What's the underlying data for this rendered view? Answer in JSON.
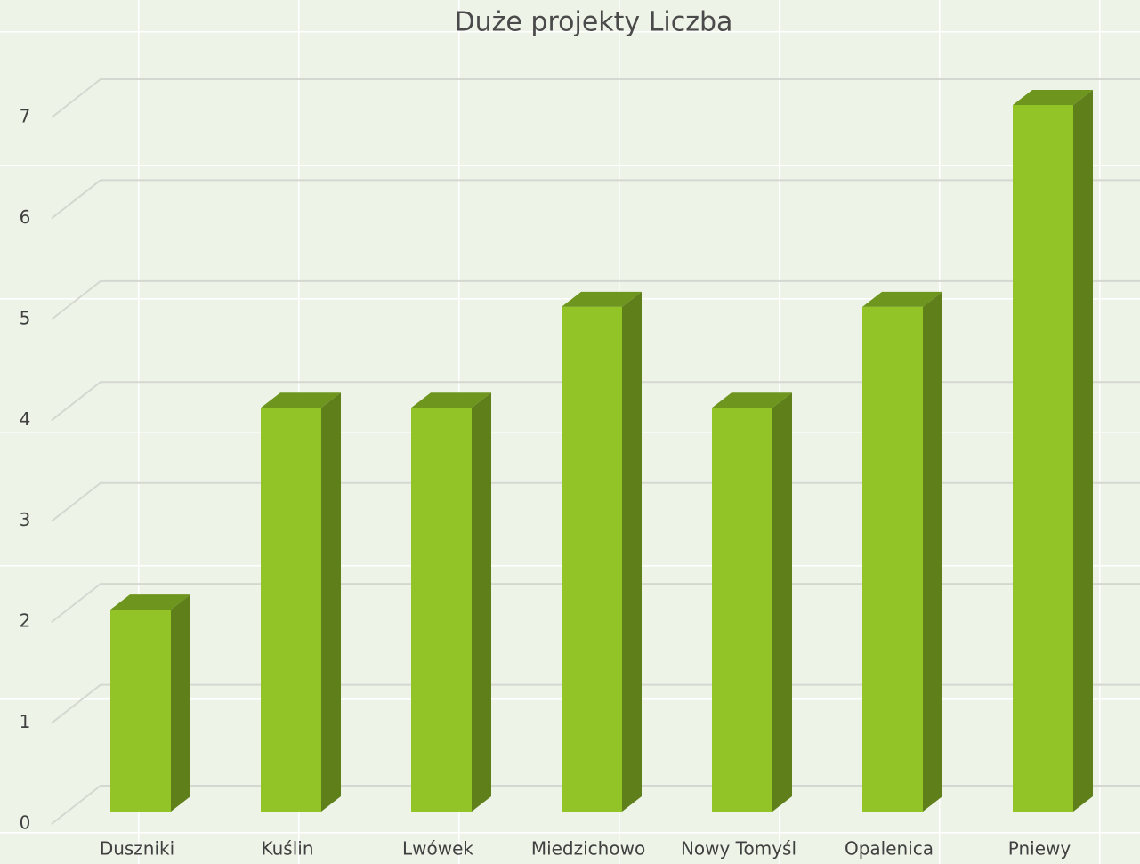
{
  "chart_data": {
    "type": "bar3d",
    "title": "Duże projekty Liczba",
    "categories": [
      "Duszniki",
      "Kuślin",
      "Lwówek",
      "Miedzichowo",
      "Nowy Tomyśl",
      "Opalenica",
      "Pniewy"
    ],
    "values": [
      2,
      4,
      4,
      5,
      4,
      5,
      7
    ],
    "color": "#92c428",
    "ylim": [
      0,
      7
    ],
    "yticks": [
      0,
      1,
      2,
      3,
      4,
      5,
      6,
      7
    ],
    "grid": true
  }
}
